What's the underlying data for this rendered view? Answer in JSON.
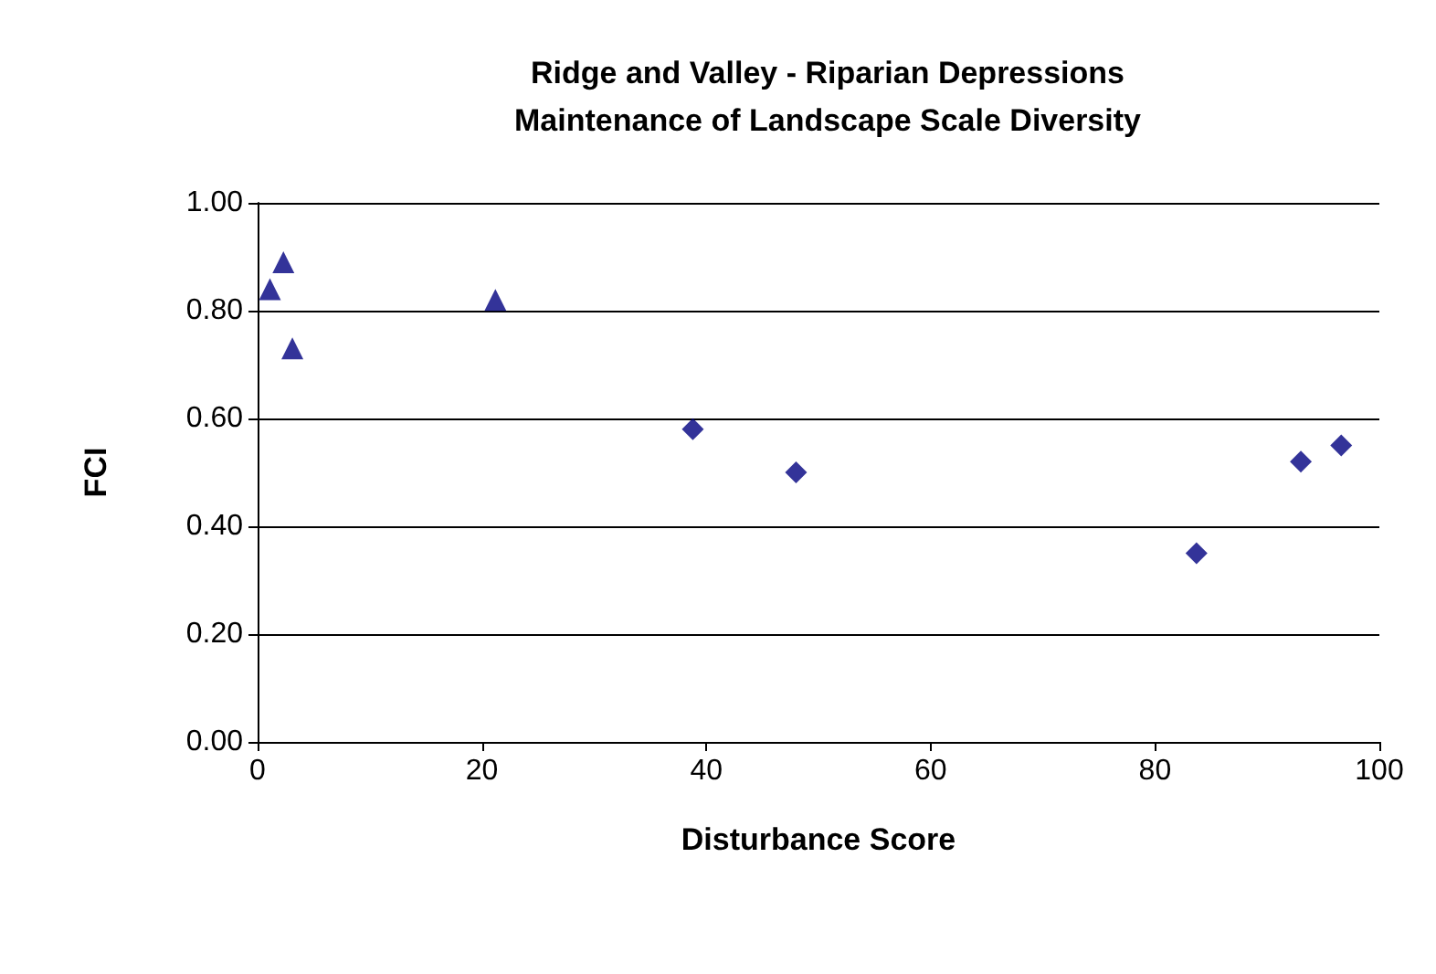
{
  "chart_data": {
    "type": "scatter",
    "title": "Ridge and Valley - Riparian Depressions\nMaintenance of Landscape Scale Diversity",
    "xlabel": "Disturbance Score",
    "ylabel": "FCI",
    "series": [
      {
        "color": "#000080",
        "marker": "triangle",
        "x": [
          1.1,
          2.3,
          3.1,
          21.2
        ],
        "values": [
          0.84,
          0.89,
          0.73,
          0.82
        ]
      },
      {
        "color": "#000080",
        "marker": "diamond",
        "x": [
          38.8,
          48.0,
          83.7,
          93.0,
          96.6
        ],
        "values": [
          0.58,
          0.5,
          0.35,
          0.52,
          0.55
        ]
      }
    ],
    "xlim": [
      0,
      100
    ],
    "xticks": [
      0,
      20,
      40,
      60,
      80,
      100
    ],
    "ylim": [
      0,
      1
    ],
    "yticks": [
      {
        "value": 0,
        "label": "0.00"
      },
      {
        "value": 0.2,
        "label": "0.20"
      },
      {
        "value": 0.4,
        "label": "0.40"
      },
      {
        "value": 0.6,
        "label": "0.60"
      },
      {
        "value": 0.8,
        "label": "0.80"
      },
      {
        "value": 1,
        "label": "1.00"
      }
    ],
    "grid": "y"
  }
}
